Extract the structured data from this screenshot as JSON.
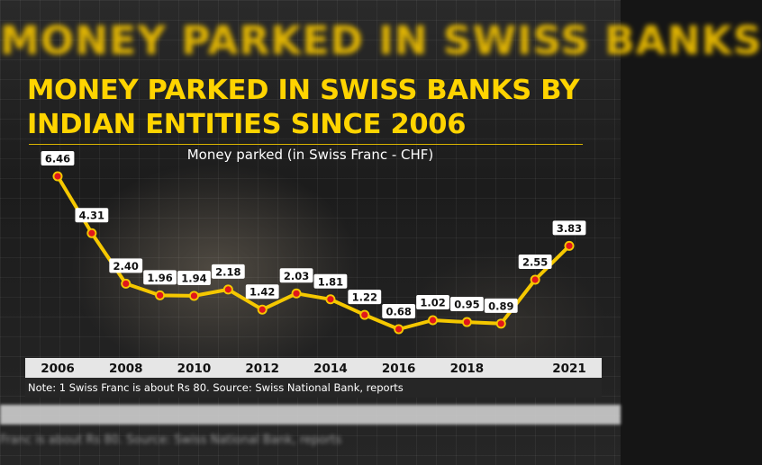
{
  "background_banner": "MONEY PARKED IN SWISS BANKS",
  "title": "MONEY PARKED IN SWISS BANKS BY INDIAN ENTITIES SINCE 2006",
  "subtitle": "Money parked (in Swiss Franc - CHF)",
  "note": "Note: 1 Swiss Franc is about Rs 80. Source: Swiss National Bank, reports",
  "background_note": "Franc is about Rs 80. Source: Swiss National Bank, reports",
  "colors": {
    "accent": "#ffd400",
    "line": "#f5c800",
    "marker": "#e0161c",
    "label_box": "#ffffff",
    "axis_band": "#e6e6e6"
  },
  "chart_data": {
    "type": "line",
    "title": "MONEY PARKED IN SWISS BANKS BY INDIAN ENTITIES SINCE 2006",
    "subtitle": "Money parked (in Swiss Franc - CHF)",
    "xlabel": "",
    "ylabel": "",
    "x": [
      2006,
      2007,
      2008,
      2009,
      2010,
      2011,
      2012,
      2013,
      2014,
      2015,
      2016,
      2017,
      2018,
      2019,
      2020,
      2021
    ],
    "x_tick_labels": [
      "2006",
      "2008",
      "2010",
      "2012",
      "2014",
      "2016",
      "2018",
      "2021"
    ],
    "series": [
      {
        "values": [
          6.46,
          4.31,
          2.4,
          1.96,
          1.94,
          2.18,
          1.42,
          2.03,
          1.81,
          1.22,
          0.68,
          1.02,
          0.95,
          0.89,
          2.55,
          3.83
        ],
        "labels": [
          "6.46",
          "4.31",
          "2.40",
          "1.96",
          "1.94",
          "2.18",
          "1.42",
          "2.03",
          "1.81",
          "1.22",
          "0.68",
          "1.02",
          "0.95",
          "0.89",
          "2.55",
          "3.83"
        ]
      }
    ],
    "grid": false,
    "legend": "none"
  }
}
